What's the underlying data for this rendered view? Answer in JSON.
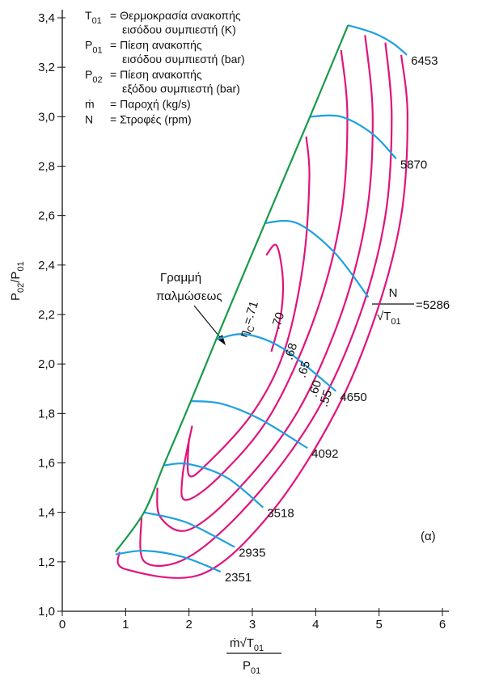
{
  "chart_data": {
    "type": "line",
    "legend": [
      {
        "symbol": [
          "T",
          "01"
        ],
        "lines": [
          "= Θερμοκρασία ανακοπής",
          "εισόδου συμπιεστή (K)"
        ]
      },
      {
        "symbol": [
          "P",
          "01"
        ],
        "lines": [
          "= Πίεση ανακοπής",
          "εισόδου συμπιεστή (bar)"
        ]
      },
      {
        "symbol": [
          "P",
          "02"
        ],
        "lines": [
          "= Πίεση ανακοπής",
          "εξόδου συμπιεστή (bar)"
        ]
      },
      {
        "symbol": [
          "ṁ"
        ],
        "lines": [
          "= Παροχή (kg/s)"
        ]
      },
      {
        "symbol": [
          "N"
        ],
        "lines": [
          "= Στροφές (rpm)"
        ]
      }
    ],
    "x_label": {
      "numerator": [
        "ṁ√T",
        "01"
      ],
      "denominator": [
        "P",
        "01"
      ]
    },
    "y_label": [
      "P",
      "02",
      "/P",
      "01"
    ],
    "xlim": [
      0,
      6
    ],
    "xticks": [
      0,
      1,
      2,
      3,
      4,
      5,
      6
    ],
    "ylim": [
      1.0,
      3.4
    ],
    "yticks": [
      {
        "value": 1.0,
        "label": "1,0"
      },
      {
        "value": 1.2,
        "label": "1,2"
      },
      {
        "value": 1.4,
        "label": "1,4"
      },
      {
        "value": 1.6,
        "label": "1,6"
      },
      {
        "value": 1.8,
        "label": "1,8"
      },
      {
        "value": 2.0,
        "label": "2,0"
      },
      {
        "value": 2.2,
        "label": "2,2"
      },
      {
        "value": 2.4,
        "label": "2,4"
      },
      {
        "value": 2.6,
        "label": "2,6"
      },
      {
        "value": 2.8,
        "label": "2,8"
      },
      {
        "value": 3.0,
        "label": "3,0"
      },
      {
        "value": 3.2,
        "label": "3,2"
      },
      {
        "value": 3.4,
        "label": "3,4"
      }
    ],
    "surge_line": {
      "label": [
        "Γραμμή",
        "παλμώσεως"
      ],
      "color": "#1a9a4a",
      "x": [
        0.84,
        1.29,
        1.6,
        2.03,
        2.43,
        3.2,
        3.91,
        4.51
      ],
      "values": [
        1.24,
        1.4,
        1.59,
        1.85,
        2.1,
        2.57,
        3.0,
        3.37
      ]
    },
    "speed_param": {
      "numerator": "N",
      "denominator": [
        "√T",
        "01"
      ],
      "sign": "="
    },
    "speed_lines": [
      {
        "name": "2351",
        "color": "#1ea0e0",
        "x": [
          0.84,
          1.3,
          1.9,
          2.5
        ],
        "values": [
          1.23,
          1.245,
          1.22,
          1.16
        ]
      },
      {
        "name": "2935",
        "color": "#1ea0e0",
        "x": [
          1.29,
          1.95,
          2.72
        ],
        "values": [
          1.4,
          1.36,
          1.26
        ]
      },
      {
        "name": "3518",
        "color": "#1ea0e0",
        "x": [
          1.6,
          2.0,
          2.6,
          3.17
        ],
        "values": [
          1.59,
          1.595,
          1.54,
          1.42
        ]
      },
      {
        "name": "4092",
        "color": "#1ea0e0",
        "x": [
          2.03,
          2.5,
          3.1,
          3.87
        ],
        "values": [
          1.85,
          1.84,
          1.78,
          1.66
        ]
      },
      {
        "name": "4650",
        "color": "#1ea0e0",
        "x": [
          2.43,
          2.9,
          3.5,
          4.32
        ],
        "values": [
          2.1,
          2.12,
          2.06,
          1.89
        ]
      },
      {
        "name": "5286",
        "color": "#1ea0e0",
        "x": [
          3.2,
          3.7,
          4.3,
          4.83
        ],
        "values": [
          2.57,
          2.57,
          2.45,
          2.27
        ]
      },
      {
        "name": "5870",
        "color": "#1ea0e0",
        "x": [
          3.91,
          4.4,
          4.9,
          5.27
        ],
        "values": [
          3.0,
          3.0,
          2.93,
          2.83
        ]
      },
      {
        "name": "6453",
        "color": "#1ea0e0",
        "x": [
          4.51,
          4.9,
          5.2,
          5.44
        ],
        "values": [
          3.37,
          3.34,
          3.3,
          3.25
        ]
      }
    ],
    "efficiency_lines": [
      {
        "label": [
          "η",
          "C",
          "=.71"
        ],
        "color": "#e0147d",
        "x": [
          3.22,
          3.38,
          3.48,
          3.45,
          3.3
        ],
        "values": [
          2.44,
          2.48,
          2.35,
          2.2,
          2.05
        ]
      },
      {
        "label": [
          ".70"
        ],
        "color": "#e0147d",
        "x": [
          3.85,
          3.9,
          3.8,
          3.5,
          3.0,
          2.3,
          2.0,
          2.0
        ],
        "values": [
          2.92,
          2.75,
          2.4,
          2.05,
          1.8,
          1.6,
          1.55,
          1.7
        ]
      },
      {
        "label": [
          ".68"
        ],
        "color": "#e0147d",
        "x": [
          4.4,
          4.5,
          4.4,
          4.0,
          3.3,
          2.5,
          1.95,
          1.9,
          2.05
        ],
        "values": [
          3.27,
          3.0,
          2.6,
          2.2,
          1.8,
          1.55,
          1.45,
          1.55,
          1.75
        ]
      },
      {
        "label": [
          ".65"
        ],
        "color": "#e0147d",
        "x": [
          4.78,
          4.9,
          4.8,
          4.4,
          3.7,
          2.8,
          2.0,
          1.55,
          1.5
        ],
        "values": [
          3.33,
          3.0,
          2.6,
          2.2,
          1.8,
          1.5,
          1.33,
          1.38,
          1.5
        ]
      },
      {
        "label": [
          ".60"
        ],
        "color": "#e0147d",
        "x": [
          5.1,
          5.2,
          5.1,
          4.7,
          4.0,
          3.0,
          2.0,
          1.3,
          1.25
        ],
        "values": [
          3.3,
          3.0,
          2.6,
          2.2,
          1.8,
          1.45,
          1.22,
          1.2,
          1.38
        ]
      },
      {
        "label": [
          ".55"
        ],
        "color": "#e0147d",
        "x": [
          5.35,
          5.45,
          5.35,
          4.95,
          4.3,
          3.3,
          2.2,
          1.0,
          0.9
        ],
        "values": [
          3.25,
          3.0,
          2.6,
          2.2,
          1.8,
          1.4,
          1.15,
          1.17,
          1.24
        ]
      }
    ],
    "panel_label": "(α)"
  }
}
